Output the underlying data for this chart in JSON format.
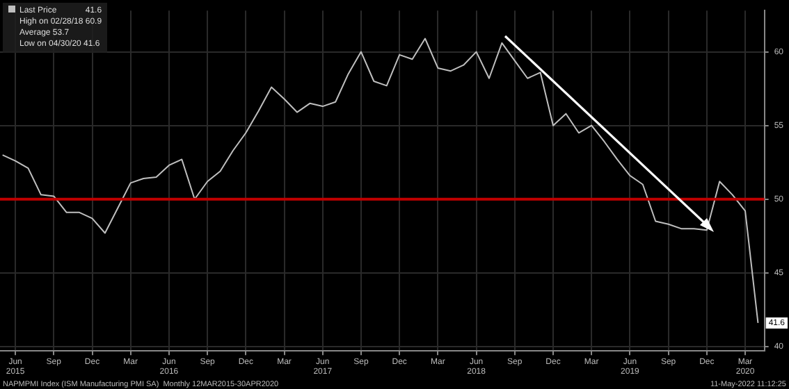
{
  "chart_data": {
    "type": "line",
    "x": [
      "2015-05",
      "2015-06",
      "2015-07",
      "2015-08",
      "2015-09",
      "2015-10",
      "2015-11",
      "2015-12",
      "2016-01",
      "2016-02",
      "2016-03",
      "2016-04",
      "2016-05",
      "2016-06",
      "2016-07",
      "2016-08",
      "2016-09",
      "2016-10",
      "2016-11",
      "2016-12",
      "2017-01",
      "2017-02",
      "2017-03",
      "2017-04",
      "2017-05",
      "2017-06",
      "2017-07",
      "2017-08",
      "2017-09",
      "2017-10",
      "2017-11",
      "2017-12",
      "2018-01",
      "2018-02",
      "2018-03",
      "2018-04",
      "2018-05",
      "2018-06",
      "2018-07",
      "2018-08",
      "2018-09",
      "2018-10",
      "2018-11",
      "2018-12",
      "2019-01",
      "2019-02",
      "2019-03",
      "2019-04",
      "2019-05",
      "2019-06",
      "2019-07",
      "2019-08",
      "2019-09",
      "2019-10",
      "2019-11",
      "2019-12",
      "2020-01",
      "2020-02",
      "2020-03",
      "2020-04"
    ],
    "series": [
      {
        "name": "Last Price",
        "color": "#bfbfbf",
        "values": [
          53.0,
          52.6,
          52.1,
          50.3,
          50.2,
          49.1,
          49.1,
          48.7,
          47.7,
          49.4,
          51.1,
          51.4,
          51.5,
          52.3,
          52.7,
          50.0,
          51.2,
          51.9,
          53.3,
          54.5,
          56.0,
          57.6,
          56.8,
          55.9,
          56.5,
          56.3,
          56.6,
          58.5,
          60.0,
          58.0,
          57.7,
          59.8,
          59.5,
          60.9,
          58.9,
          58.7,
          59.1,
          60.0,
          58.2,
          60.6,
          59.4,
          58.2,
          58.6,
          55.0,
          55.8,
          54.5,
          55.0,
          53.9,
          52.7,
          51.6,
          51.0,
          48.5,
          48.3,
          48.0,
          48.0,
          47.9,
          51.2,
          50.3,
          49.2,
          41.6
        ],
        "value_labels": [
          null,
          null,
          null,
          null,
          null,
          null,
          null,
          null,
          null,
          null,
          null,
          null,
          null,
          null,
          null,
          null,
          null,
          null,
          null,
          null,
          null,
          null,
          null,
          null,
          null,
          null,
          null,
          null,
          null,
          null,
          null,
          null,
          null,
          null,
          null,
          null,
          null,
          null,
          null,
          null,
          null,
          null,
          null,
          null,
          null,
          null,
          null,
          null,
          null,
          null,
          null,
          null,
          null,
          null,
          null,
          null,
          null,
          null,
          null,
          "41.6"
        ]
      }
    ],
    "xlim": [
      "2015-04-25",
      "2020-04-16"
    ],
    "xticks": [
      {
        "value": "2015-06",
        "label": "Jun\n2015"
      },
      {
        "value": "2015-09",
        "label": "Sep"
      },
      {
        "value": "2015-12",
        "label": "Dec"
      },
      {
        "value": "2016-03",
        "label": "Mar"
      },
      {
        "value": "2016-06",
        "label": "Jun\n2016"
      },
      {
        "value": "2016-09",
        "label": "Sep"
      },
      {
        "value": "2016-12",
        "label": "Dec"
      },
      {
        "value": "2017-03",
        "label": "Mar"
      },
      {
        "value": "2017-06",
        "label": "Jun\n2017"
      },
      {
        "value": "2017-09",
        "label": "Sep"
      },
      {
        "value": "2017-12",
        "label": "Dec"
      },
      {
        "value": "2018-03",
        "label": "Mar"
      },
      {
        "value": "2018-06",
        "label": "Jun\n2018"
      },
      {
        "value": "2018-09",
        "label": "Sep"
      },
      {
        "value": "2018-12",
        "label": "Dec"
      },
      {
        "value": "2019-03",
        "label": "Mar"
      },
      {
        "value": "2019-06",
        "label": "Jun\n2019"
      },
      {
        "value": "2019-09",
        "label": "Sep"
      },
      {
        "value": "2019-12",
        "label": "Dec"
      },
      {
        "value": "2020-03",
        "label": "Mar\n2020"
      }
    ],
    "ylim": [
      39.7,
      62.8
    ],
    "yticks": [
      40,
      45,
      50,
      55,
      60
    ],
    "ref_lines": [
      {
        "axis": "y",
        "value": 50,
        "color": "#c00000"
      }
    ],
    "grid": true,
    "legend": "top left",
    "marker": "none",
    "line_style": "solid",
    "annotations": [
      "41.6",
      "High on 02/28/18 60.9",
      "Average 53.7",
      "Low on 04/30/20 41.6",
      "NAPMPMI Index (ISM Manufacturing PMI SA)  Monthly 12MAR2015-30APR2020",
      "11-May-2022 11:12:25"
    ]
  }
}
